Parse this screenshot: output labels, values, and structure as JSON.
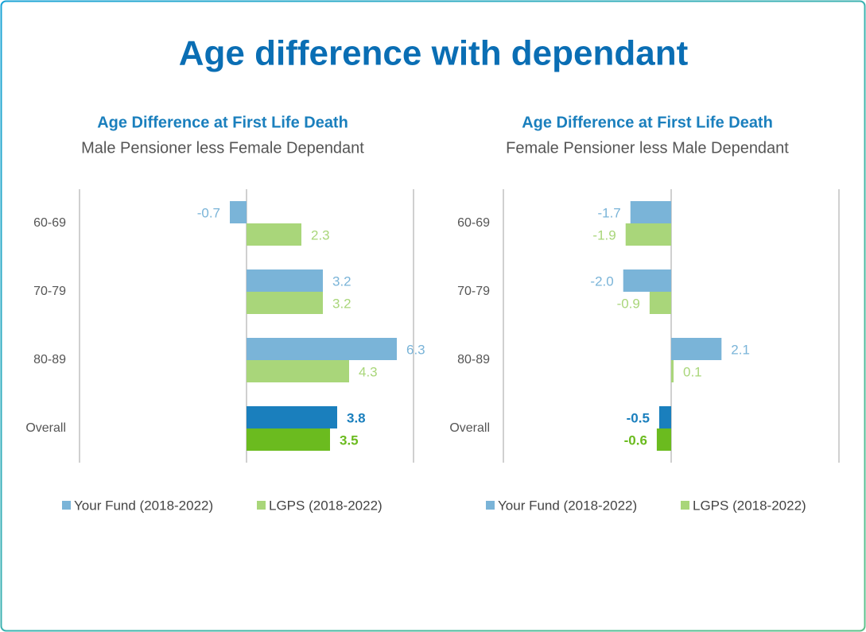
{
  "title": "Age difference with dependant",
  "chart_data": [
    {
      "type": "hbar",
      "title": "Age Difference at First Life Death",
      "subtitle": "Male Pensioner less Female Dependant",
      "categories": [
        "60-69",
        "70-79",
        "80-89",
        "Overall"
      ],
      "xlim": [
        -7,
        7
      ],
      "series": [
        {
          "name": "Your Fund (2018-2022)",
          "color": "#7ab4d8",
          "colors": [
            "#7ab4d8",
            "#7ab4d8",
            "#7ab4d8",
            "#1a7fbd"
          ],
          "values": [
            -0.7,
            3.2,
            6.3,
            3.8
          ],
          "value_labels": [
            "-0.7",
            "3.2",
            "6.3",
            "3.8"
          ]
        },
        {
          "name": "LGPS (2018-2022)",
          "color": "#a9d67a",
          "colors": [
            "#a9d67a",
            "#a9d67a",
            "#a9d67a",
            "#6bbb1f"
          ],
          "values": [
            2.3,
            3.2,
            4.3,
            3.5
          ],
          "value_labels": [
            "2.3",
            "3.2",
            "4.3",
            "3.5"
          ]
        }
      ]
    },
    {
      "type": "hbar",
      "title": "Age Difference at First Life Death",
      "subtitle": "Female Pensioner less Male Dependant",
      "categories": [
        "60-69",
        "70-79",
        "80-89",
        "Overall"
      ],
      "xlim": [
        -7,
        7
      ],
      "series": [
        {
          "name": "Your Fund (2018-2022)",
          "color": "#7ab4d8",
          "colors": [
            "#7ab4d8",
            "#7ab4d8",
            "#7ab4d8",
            "#1a7fbd"
          ],
          "values": [
            -1.7,
            -2.0,
            2.1,
            -0.5
          ],
          "value_labels": [
            "-1.7",
            "-2.0",
            "2.1",
            "-0.5"
          ]
        },
        {
          "name": "LGPS (2018-2022)",
          "color": "#a9d67a",
          "colors": [
            "#a9d67a",
            "#a9d67a",
            "#a9d67a",
            "#6bbb1f"
          ],
          "values": [
            -1.9,
            -0.9,
            0.1,
            -0.6
          ],
          "value_labels": [
            "-1.9",
            "-0.9",
            "0.1",
            "-0.6"
          ]
        }
      ]
    }
  ]
}
